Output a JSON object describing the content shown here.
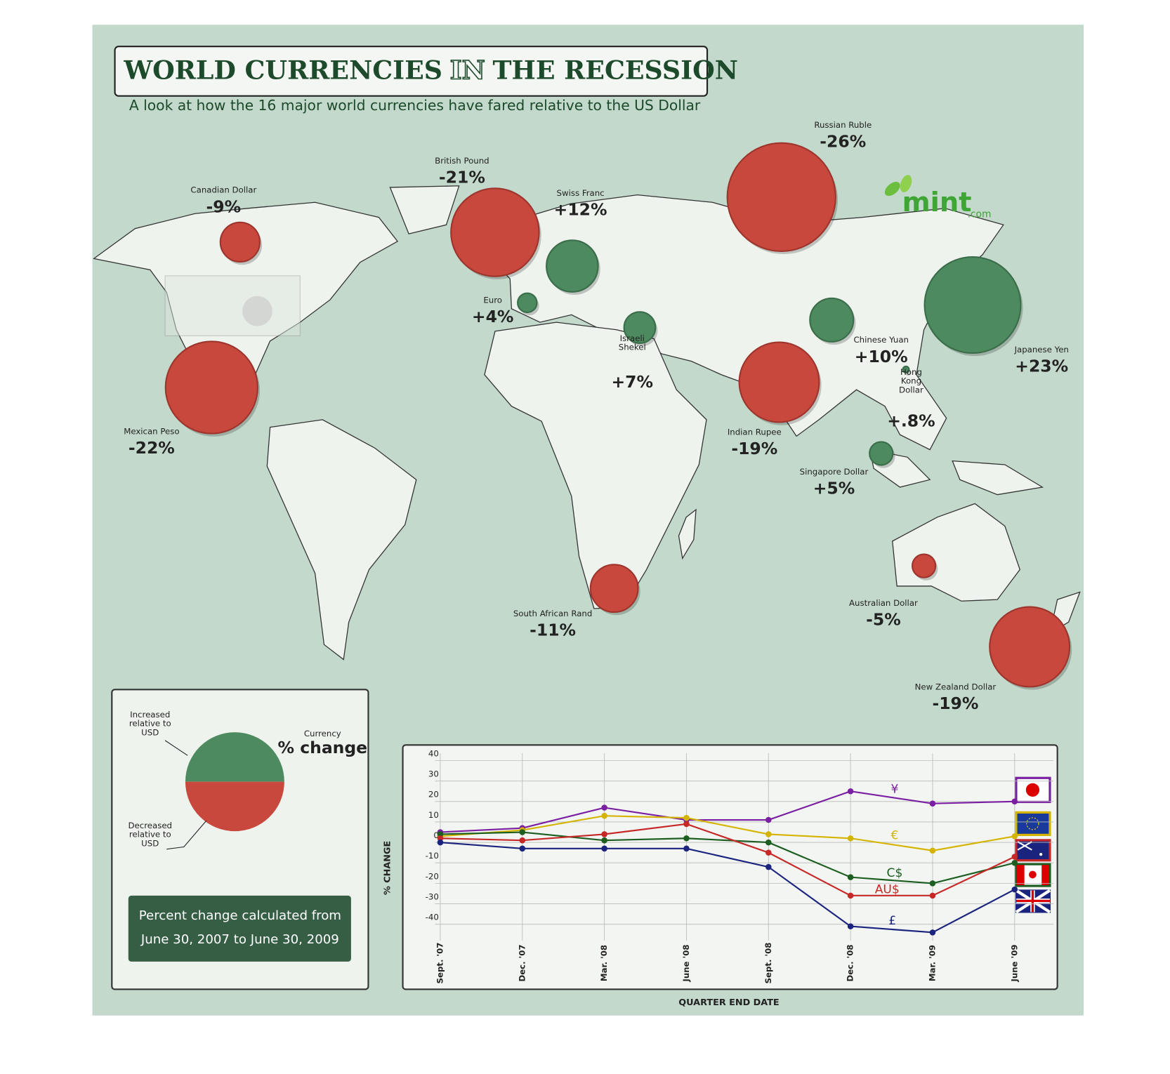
{
  "title_parts": [
    "WORLD CURRENCIES",
    "IN",
    "THE RECESSION"
  ],
  "subtitle": "A look at how the 16 major world currencies have fared relative to the US Dollar",
  "brand": "mint",
  "brand_suffix": ".com",
  "colors": {
    "increase": "#4d8a5f",
    "decrease": "#c8483e"
  },
  "currencies": [
    {
      "name": "Canadian Dollar",
      "value": -9,
      "value_label": "-9%"
    },
    {
      "name": "British Pound",
      "value": -21,
      "value_label": "-21%"
    },
    {
      "name": "Swiss Franc",
      "value": 12,
      "value_label": "+12%"
    },
    {
      "name": "Russian Ruble",
      "value": -26,
      "value_label": "-26%"
    },
    {
      "name": "Euro",
      "value": 4,
      "value_label": "+4%"
    },
    {
      "name": "Israeli Shekel",
      "value": 7,
      "value_label": "+7%"
    },
    {
      "name": "Chinese Yuan",
      "value": 10,
      "value_label": "+10%"
    },
    {
      "name": "Japanese Yen",
      "value": 23,
      "value_label": "+23%"
    },
    {
      "name": "Mexican Peso",
      "value": -22,
      "value_label": "-22%"
    },
    {
      "name": "Indian Rupee",
      "value": -19,
      "value_label": "-19%"
    },
    {
      "name": "Hong Kong Dollar",
      "value": 0.8,
      "value_label": "+.8%"
    },
    {
      "name": "Singapore Dollar",
      "value": 5,
      "value_label": "+5%"
    },
    {
      "name": "South African Rand",
      "value": -11,
      "value_label": "-11%"
    },
    {
      "name": "Australian Dollar",
      "value": -5,
      "value_label": "-5%"
    },
    {
      "name": "New Zealand Dollar",
      "value": -19,
      "value_label": "-19%"
    }
  ],
  "legend": {
    "increased": "Increased relative to USD",
    "decreased": "Decreased relative to USD",
    "currency": "Currency",
    "change": "% change"
  },
  "note": "Percent change calculated from June 30, 2007 to June 30, 2009",
  "chart_data": {
    "type": "line",
    "x_label": "QUARTER END DATE",
    "y_label": "% CHANGE",
    "categories": [
      "Sept. '07",
      "Dec. '07",
      "Mar. '08",
      "June '08",
      "Sept. '08",
      "Dec. '08",
      "Mar. '09",
      "June '09"
    ],
    "ylim": [
      -50,
      45
    ],
    "yticks": [
      40,
      30,
      20,
      10,
      0,
      -10,
      -20,
      -30,
      -40
    ],
    "grid": true,
    "series": [
      {
        "name": "¥",
        "color": "#7b1fa2",
        "values": [
          5,
          7,
          17,
          11,
          11,
          25,
          19,
          20
        ]
      },
      {
        "name": "€",
        "color": "#d4b400",
        "values": [
          3,
          6,
          13,
          12,
          4,
          2,
          -4,
          3
        ]
      },
      {
        "name": "C$",
        "color": "#1b5e20",
        "values": [
          4,
          5,
          1,
          2,
          0,
          -17,
          -20,
          -10
        ]
      },
      {
        "name": "AU$",
        "color": "#c62828",
        "values": [
          2,
          1,
          4,
          9,
          -5,
          -26,
          -26,
          -7
        ]
      },
      {
        "name": "£",
        "color": "#1a237e",
        "values": [
          0,
          -3,
          -3,
          -3,
          -12,
          -41,
          -44,
          -23
        ]
      }
    ]
  }
}
